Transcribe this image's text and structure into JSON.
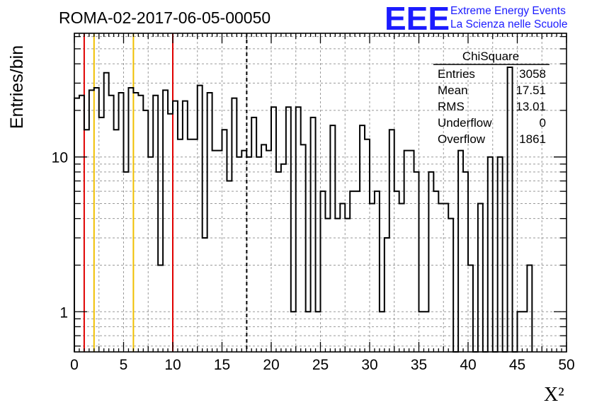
{
  "header": {
    "run_title": "ROMA-02-2017-06-05-00050",
    "logo_text": "EEE",
    "logo_line1": "Extreme Energy Events",
    "logo_line2": "La Scienza nelle Scuole"
  },
  "stats_box": {
    "title": "ChiSquare",
    "rows": [
      {
        "label": "Entries",
        "value": "3058"
      },
      {
        "label": "Mean",
        "value": "17.51"
      },
      {
        "label": "RMS",
        "value": "13.01"
      },
      {
        "label": "Underflow",
        "value": "0"
      },
      {
        "label": "Overflow",
        "value": "1861"
      }
    ]
  },
  "colors": {
    "red_line": "#e00000",
    "yellow_line": "#f0c000",
    "histogram": "#000000",
    "grid": "#9a9a9a",
    "logo": "#1c1cff"
  },
  "chart_data": {
    "type": "histogram",
    "title": "ROMA-02-2017-06-05-00050",
    "xlabel": "X²",
    "ylabel": "Entries/bin",
    "y_scale": "log",
    "xlim": [
      0,
      50
    ],
    "ylim": [
      0.55,
      63
    ],
    "grid": true,
    "bin_width": 0.5,
    "x_ticks": [
      "0",
      "5",
      "10",
      "15",
      "20",
      "25",
      "30",
      "35",
      "40",
      "45",
      "50"
    ],
    "y_tick_labels": [
      "1",
      "10"
    ],
    "values": [
      24,
      25,
      15,
      27,
      28,
      18,
      35,
      25,
      15,
      26,
      8,
      28,
      26,
      25,
      20,
      10,
      25,
      2,
      27,
      19,
      23,
      13,
      23,
      13,
      13,
      29,
      3,
      26,
      11,
      11,
      15,
      7,
      24,
      10,
      11,
      10,
      18,
      10,
      12,
      11,
      21,
      8,
      9,
      21,
      1,
      21,
      12,
      1,
      18,
      1,
      6,
      4,
      16,
      4,
      5,
      4,
      6,
      6,
      16,
      13,
      5,
      6,
      1,
      3,
      15,
      6,
      5,
      11,
      11,
      8,
      1,
      1,
      8,
      6,
      5,
      5,
      4,
      0,
      11,
      8,
      2,
      0.5,
      5,
      0.5,
      10,
      0.5,
      10,
      0.5,
      38,
      0.5,
      1,
      1,
      2
    ],
    "vertical_lines": [
      {
        "x": 1,
        "color": "#e00000",
        "style": "solid"
      },
      {
        "x": 2,
        "color": "#f0c000",
        "style": "solid"
      },
      {
        "x": 6,
        "color": "#f0c000",
        "style": "solid"
      },
      {
        "x": 10,
        "color": "#e00000",
        "style": "solid"
      },
      {
        "x": 17.51,
        "color": "#000000",
        "style": "dashed"
      }
    ]
  }
}
